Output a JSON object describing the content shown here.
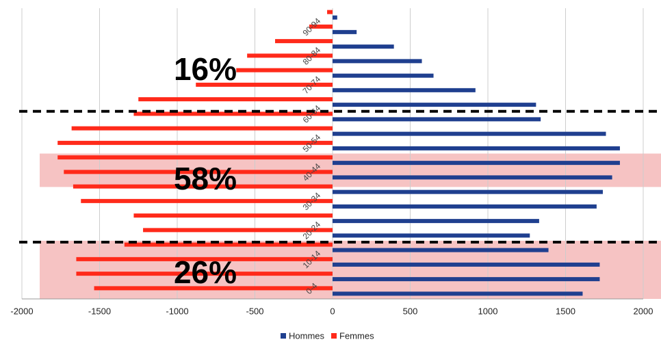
{
  "chart_data": {
    "type": "pyramid",
    "categories": [
      "0-4",
      null,
      "10-14",
      null,
      "20-24",
      null,
      "30-34",
      null,
      "40-44",
      null,
      "50-54",
      null,
      "60-64",
      null,
      "70-74",
      null,
      "80-84",
      null,
      "90-94",
      null
    ],
    "series": [
      {
        "name": "Hommes",
        "color": "#1f3f8f",
        "values": [
          1610,
          1720,
          1720,
          1390,
          1270,
          1330,
          1700,
          1740,
          1800,
          1850,
          1850,
          1760,
          1340,
          1310,
          920,
          650,
          575,
          395,
          155,
          30
        ]
      },
      {
        "name": "Femmes",
        "color": "#ff2a1a",
        "values": [
          -1535,
          -1650,
          -1650,
          -1340,
          -1220,
          -1280,
          -1620,
          -1670,
          -1730,
          -1770,
          -1770,
          -1680,
          -1280,
          -1250,
          -880,
          -620,
          -550,
          -370,
          -150,
          -35
        ]
      }
    ],
    "xlim": [
      -2000,
      2000
    ],
    "xticks": [
      -2000,
      -1500,
      -1000,
      -500,
      0,
      500,
      1000,
      1500,
      2000
    ],
    "grid": true,
    "annotations": [
      "16%",
      "58%",
      "26%"
    ]
  }
}
